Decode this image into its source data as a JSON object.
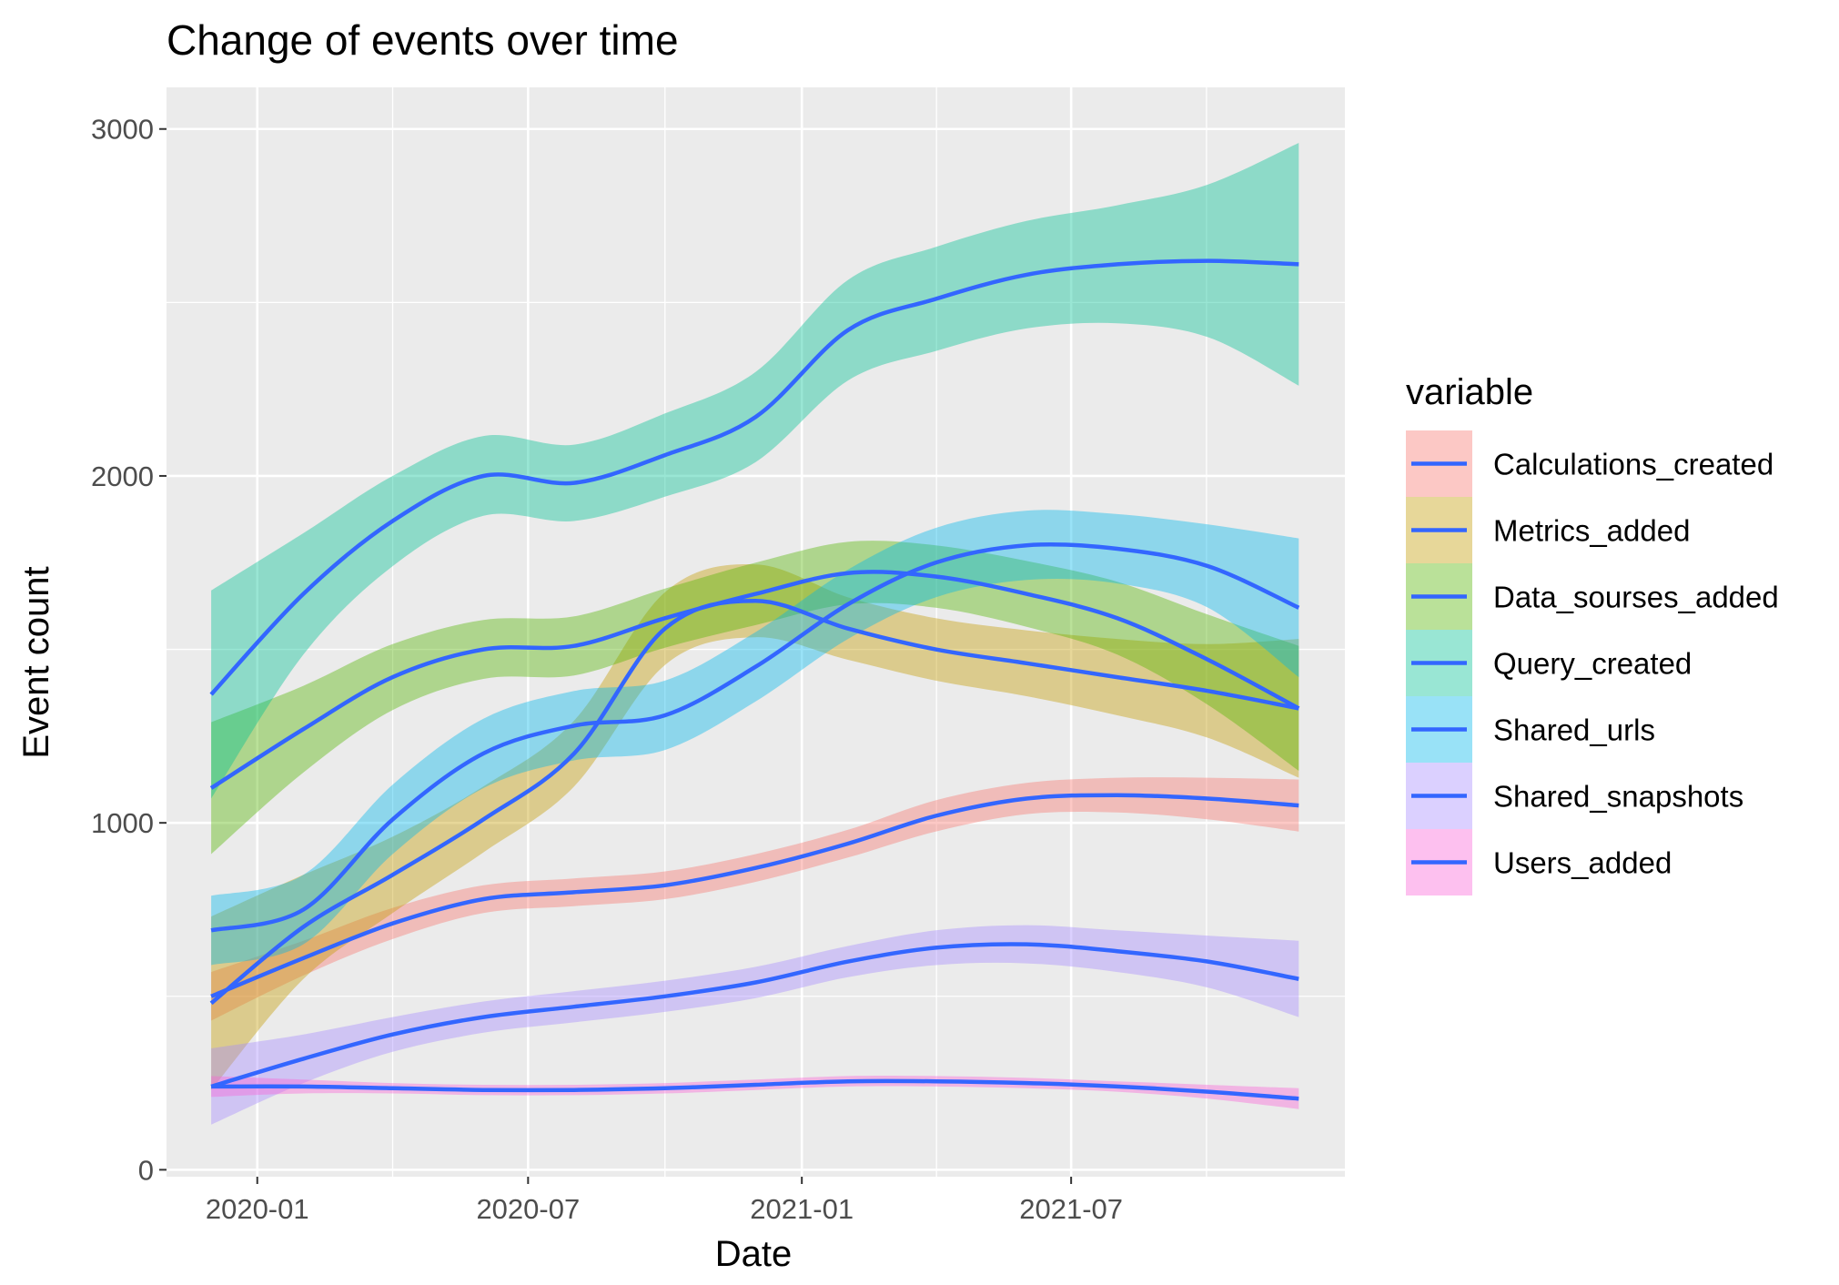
{
  "chart_data": {
    "type": "line",
    "title": "Change of events over time",
    "xlabel": "Date",
    "ylabel": "Event count",
    "x": [
      "2019-12-01",
      "2020-02-01",
      "2020-04-01",
      "2020-06-01",
      "2020-08-01",
      "2020-10-01",
      "2020-12-01",
      "2021-02-01",
      "2021-04-01",
      "2021-06-01",
      "2021-08-01",
      "2021-10-01",
      "2021-12-01"
    ],
    "xlim": [
      "2019-11-01",
      "2022-01-01"
    ],
    "x_ticks": [
      "2020-01-01",
      "2020-07-01",
      "2021-01-01",
      "2021-07-01"
    ],
    "x_tick_labels": [
      "2020-01",
      "2020-07",
      "2021-01",
      "2021-07"
    ],
    "ylim": [
      -20,
      3120
    ],
    "y_ticks": [
      0,
      1000,
      2000,
      3000
    ],
    "y_tick_labels": [
      "0",
      "1000",
      "2000",
      "3000"
    ],
    "grid": true,
    "legend": {
      "title": "variable",
      "position": "right"
    },
    "line_color": "#3366ff",
    "series": [
      {
        "name": "Calculations_created",
        "color": "#f8766d",
        "values": [
          500,
          610,
          710,
          780,
          800,
          820,
          870,
          940,
          1020,
          1070,
          1080,
          1070,
          1050
        ],
        "se": [
          70,
          50,
          45,
          40,
          40,
          40,
          40,
          40,
          45,
          45,
          50,
          60,
          75
        ]
      },
      {
        "name": "Metrics_added",
        "color": "#c49a00",
        "values": [
          480,
          700,
          850,
          1010,
          1200,
          1560,
          1640,
          1560,
          1500,
          1460,
          1420,
          1380,
          1330
        ],
        "se": [
          250,
          150,
          110,
          95,
          95,
          105,
          105,
          90,
          90,
          95,
          110,
          135,
          200
        ]
      },
      {
        "name": "Data_sourses_added",
        "color": "#53b400",
        "values": [
          1100,
          1270,
          1420,
          1500,
          1510,
          1590,
          1660,
          1720,
          1710,
          1660,
          1590,
          1470,
          1330
        ],
        "se": [
          190,
          125,
          95,
          85,
          85,
          85,
          90,
          90,
          90,
          95,
          105,
          130,
          180
        ]
      },
      {
        "name": "Query_created",
        "color": "#00c094",
        "values": [
          1370,
          1660,
          1870,
          2000,
          1980,
          2060,
          2170,
          2420,
          2510,
          2580,
          2610,
          2620,
          2610
        ],
        "se": [
          300,
          175,
          130,
          115,
          110,
          120,
          130,
          145,
          150,
          155,
          170,
          220,
          350
        ]
      },
      {
        "name": "Shared_urls",
        "color": "#00b6eb",
        "values": [
          690,
          750,
          1010,
          1200,
          1280,
          1310,
          1450,
          1630,
          1750,
          1800,
          1790,
          1740,
          1620
        ],
        "se": [
          100,
          100,
          100,
          100,
          100,
          100,
          100,
          100,
          100,
          100,
          100,
          120,
          200
        ]
      },
      {
        "name": "Shared_snapshots",
        "color": "#a58aff",
        "values": [
          240,
          320,
          390,
          440,
          470,
          500,
          540,
          600,
          640,
          650,
          630,
          600,
          550
        ],
        "se": [
          110,
          70,
          50,
          45,
          45,
          45,
          45,
          45,
          50,
          55,
          60,
          75,
          110
        ]
      },
      {
        "name": "Users_added",
        "color": "#fb61d7",
        "values": [
          240,
          240,
          235,
          230,
          230,
          235,
          245,
          255,
          255,
          250,
          240,
          225,
          205
        ],
        "se": [
          30,
          20,
          15,
          15,
          15,
          15,
          15,
          15,
          15,
          15,
          15,
          20,
          30
        ]
      }
    ]
  }
}
